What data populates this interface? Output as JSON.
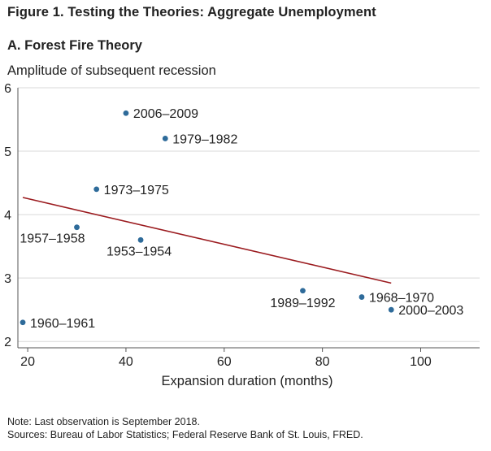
{
  "figure_title": "Figure 1.  Testing the Theories: Aggregate Unemployment",
  "panel_title": "A. Forest Fire Theory",
  "notes": {
    "note": "Note: Last observation is September 2018.",
    "sources": "Sources: Bureau of Labor Statistics; Federal Reserve Bank of St. Louis, FRED."
  },
  "colors": {
    "points": "#2e6b9a",
    "trendline": "#9b1b1f",
    "grid": "#d9d9d9",
    "axis": "#555555"
  },
  "chart_data": {
    "type": "scatter",
    "title": "A. Forest Fire Theory",
    "xlabel": "Expansion duration (months)",
    "ylabel": "Amplitude of subsequent recession",
    "xlim": [
      18,
      112
    ],
    "ylim": [
      1.9,
      6
    ],
    "xticks": [
      20,
      40,
      60,
      80,
      100
    ],
    "yticks": [
      2,
      3,
      4,
      5,
      6
    ],
    "grid": "horizontal",
    "points": [
      {
        "label": "2006–2009",
        "x": 40,
        "y": 5.6
      },
      {
        "label": "1979–1982",
        "x": 48,
        "y": 5.2
      },
      {
        "label": "1973–1975",
        "x": 34,
        "y": 4.4
      },
      {
        "label": "1957–1958",
        "x": 30,
        "y": 3.8
      },
      {
        "label": "1953–1954",
        "x": 43,
        "y": 3.6
      },
      {
        "label": "1989–1992",
        "x": 76,
        "y": 2.8
      },
      {
        "label": "1968–1970",
        "x": 88,
        "y": 2.7
      },
      {
        "label": "2000–2003",
        "x": 94,
        "y": 2.5
      },
      {
        "label": "1960–1961",
        "x": 19,
        "y": 2.3
      }
    ],
    "trendline": {
      "x": [
        19,
        94
      ],
      "y": [
        4.27,
        2.92
      ]
    }
  }
}
